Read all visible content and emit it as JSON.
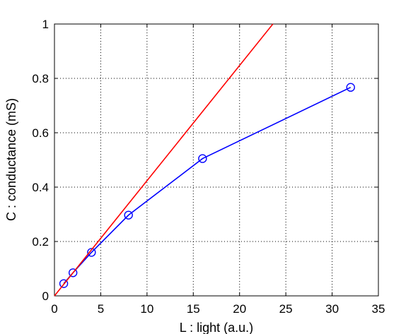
{
  "chart_data": {
    "type": "line",
    "title": "",
    "xlabel": "L : light (a.u.)",
    "ylabel": "C : conductance (mS)",
    "xlim": [
      0,
      35
    ],
    "ylim": [
      0,
      1
    ],
    "xticks": [
      0,
      5,
      10,
      15,
      20,
      25,
      30,
      35
    ],
    "yticks": [
      0,
      0.2,
      0.4,
      0.6,
      0.8,
      1
    ],
    "xtick_labels": [
      "0",
      "5",
      "10",
      "15",
      "20",
      "25",
      "30",
      "35"
    ],
    "ytick_labels": [
      "0",
      "0.2",
      "0.4",
      "0.6",
      "0.8",
      "1"
    ],
    "grid": true,
    "legend": "none",
    "series": [
      {
        "color": "#0000ff",
        "marker": "circle",
        "x": [
          1,
          2,
          4,
          8,
          16,
          32
        ],
        "y": [
          0.045,
          0.085,
          0.16,
          0.297,
          0.505,
          0.767
        ]
      },
      {
        "color": "#ff0000",
        "marker": "none",
        "x": [
          0,
          23.6
        ],
        "y": [
          0,
          1.0
        ]
      }
    ]
  }
}
